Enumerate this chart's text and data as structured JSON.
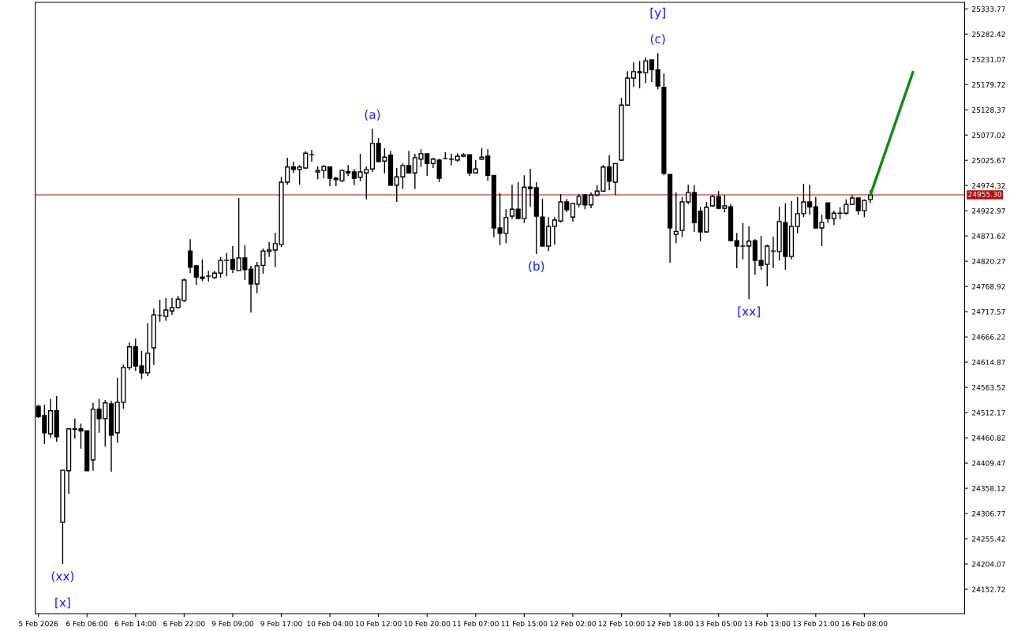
{
  "chart_data": {
    "type": "candlestick",
    "color": "#000000",
    "categories": [
      "5 Feb 2026",
      null,
      null,
      null,
      null,
      null,
      null,
      null,
      "6 Feb 06:00",
      null,
      null,
      null,
      null,
      null,
      null,
      null,
      "6 Feb 14:00",
      null,
      null,
      null,
      null,
      null,
      null,
      null,
      "6 Feb 22:00",
      null,
      null,
      null,
      null,
      null,
      null,
      null,
      "9 Feb 09:00",
      null,
      null,
      null,
      null,
      null,
      null,
      null,
      "9 Feb 17:00",
      null,
      null,
      null,
      null,
      null,
      null,
      null,
      "10 Feb 04:00",
      null,
      null,
      null,
      null,
      null,
      null,
      null,
      "10 Feb 12:00",
      null,
      null,
      null,
      null,
      null,
      null,
      null,
      "10 Feb 20:00",
      null,
      null,
      null,
      null,
      null,
      null,
      null,
      "11 Feb 07:00",
      null,
      null,
      null,
      null,
      null,
      null,
      null,
      "11 Feb 15:00",
      null,
      null,
      null,
      null,
      null,
      null,
      null,
      "12 Feb 02:00",
      null,
      null,
      null,
      null,
      null,
      null,
      null,
      "12 Feb 10:00",
      null,
      null,
      null,
      null,
      null,
      null,
      null,
      "12 Feb 18:00",
      null,
      null,
      null,
      null,
      null,
      null,
      null,
      "13 Feb 05:00",
      null,
      null,
      null,
      null,
      null,
      null,
      null,
      "13 Feb 13:00",
      null,
      null,
      null,
      null,
      null,
      null,
      null,
      "13 Feb 21:00",
      null,
      null,
      null,
      null,
      null,
      null,
      null,
      "16 Feb 08:00",
      null,
      null,
      null,
      null,
      null,
      null,
      null,
      null,
      null,
      null,
      null,
      null,
      null,
      null,
      null,
      null
    ],
    "ohlc": [
      [
        24525,
        24528,
        24501,
        24504
      ],
      [
        24506,
        24528,
        24448,
        24471
      ],
      [
        24469,
        24540,
        24461,
        24516
      ],
      [
        24516,
        24546,
        24453,
        24463
      ],
      [
        24289,
        24395,
        24204,
        24395
      ],
      [
        24394,
        24479,
        24347,
        24479
      ],
      [
        24478,
        24500,
        24459,
        24479
      ],
      [
        24479,
        24490,
        24439,
        24475
      ],
      [
        24475,
        24475,
        24394,
        24394
      ],
      [
        24416,
        24532,
        24394,
        24519
      ],
      [
        24519,
        24540,
        24471,
        24500
      ],
      [
        24500,
        24538,
        24443,
        24532
      ],
      [
        24530,
        24536,
        24392,
        24466
      ],
      [
        24471,
        24583,
        24451,
        24533
      ],
      [
        24533,
        24610,
        24520,
        24604
      ],
      [
        24604,
        24655,
        24599,
        24646
      ],
      [
        24646,
        24663,
        24597,
        24607
      ],
      [
        24607,
        24638,
        24580,
        24593
      ],
      [
        24593,
        24694,
        24586,
        24633
      ],
      [
        24644,
        24724,
        24609,
        24711
      ],
      [
        24710,
        24742,
        24697,
        24710
      ],
      [
        24708,
        24745,
        24699,
        24721
      ],
      [
        24719,
        24745,
        24711,
        24726
      ],
      [
        24726,
        24750,
        24724,
        24743
      ],
      [
        24740,
        24785,
        24737,
        24782
      ],
      [
        24841,
        24865,
        24796,
        24808
      ],
      [
        24811,
        24812,
        24772,
        24788
      ],
      [
        24788,
        24824,
        24780,
        24785
      ],
      [
        24790,
        24801,
        24779,
        24790
      ],
      [
        24787,
        24801,
        24784,
        24796
      ],
      [
        24796,
        24829,
        24787,
        24822
      ],
      [
        24822,
        24837,
        24790,
        24822
      ],
      [
        24824,
        24851,
        24796,
        24804
      ],
      [
        24801,
        24949,
        24800,
        24827
      ],
      [
        24827,
        24853,
        24782,
        24803
      ],
      [
        24804,
        24811,
        24716,
        24774
      ],
      [
        24774,
        24819,
        24755,
        24811
      ],
      [
        24812,
        24846,
        24795,
        24841
      ],
      [
        24840,
        24859,
        24829,
        24843
      ],
      [
        24843,
        24878,
        24808,
        24856
      ],
      [
        24854,
        24992,
        24849,
        24981
      ],
      [
        24981,
        25031,
        24976,
        25012
      ],
      [
        25012,
        25023,
        25000,
        25007
      ],
      [
        25007,
        25016,
        24976,
        25012
      ],
      [
        25010,
        25044,
        25008,
        25040
      ],
      [
        25037,
        25047,
        25023,
        25037
      ],
      [
        25002,
        25013,
        24987,
        25005
      ],
      [
        25005,
        25016,
        24989,
        25013
      ],
      [
        25012,
        25012,
        24973,
        24989
      ],
      [
        24989,
        24992,
        24973,
        24986
      ],
      [
        24984,
        25007,
        24981,
        25005
      ],
      [
        25003,
        25016,
        24994,
        25000
      ],
      [
        25002,
        25008,
        24975,
        24989
      ],
      [
        24991,
        25039,
        24983,
        25002
      ],
      [
        25000,
        25013,
        24946,
        25007
      ],
      [
        25008,
        25090,
        25002,
        25060
      ],
      [
        25060,
        25071,
        25021,
        25023
      ],
      [
        25024,
        25050,
        24999,
        25032
      ],
      [
        25036,
        25045,
        24973,
        24975
      ],
      [
        24975,
        25010,
        24941,
        24992
      ],
      [
        24992,
        25019,
        24967,
        25015
      ],
      [
        25015,
        25045,
        24999,
        25000
      ],
      [
        25000,
        25039,
        24967,
        25031
      ],
      [
        25028,
        25048,
        25012,
        25039
      ],
      [
        25039,
        25039,
        24994,
        25019
      ],
      [
        25019,
        25031,
        25010,
        25028
      ],
      [
        25026,
        25029,
        24981,
        24989
      ],
      [
        25029,
        25042,
        25028,
        25029
      ],
      [
        25028,
        25039,
        25015,
        25028
      ],
      [
        25026,
        25040,
        25023,
        25034
      ],
      [
        25034,
        25040,
        25032,
        25037
      ],
      [
        25037,
        25037,
        24994,
        25000
      ],
      [
        25000,
        25026,
        24999,
        25008
      ],
      [
        25028,
        25050,
        25026,
        25032
      ],
      [
        25034,
        25048,
        24984,
        24995
      ],
      [
        24995,
        24995,
        24869,
        24888
      ],
      [
        24888,
        24959,
        24853,
        24877
      ],
      [
        24877,
        24926,
        24857,
        24909
      ],
      [
        24912,
        24976,
        24906,
        24926
      ],
      [
        24926,
        24981,
        24907,
        24907
      ],
      [
        24907,
        24995,
        24898,
        24971
      ],
      [
        24971,
        25008,
        24931,
        24968
      ],
      [
        24970,
        24981,
        24835,
        24912
      ],
      [
        24910,
        24947,
        24851,
        24851
      ],
      [
        24851,
        24910,
        24841,
        24891
      ],
      [
        24891,
        24910,
        24854,
        24904
      ],
      [
        24902,
        24957,
        24899,
        24941
      ],
      [
        24941,
        24947,
        24920,
        24925
      ],
      [
        24910,
        24939,
        24901,
        24938
      ],
      [
        24936,
        24957,
        24930,
        24952
      ],
      [
        24955,
        24957,
        24926,
        24935
      ],
      [
        24935,
        24960,
        24928,
        24955
      ],
      [
        24955,
        24975,
        24952,
        24963
      ],
      [
        24963,
        25016,
        24962,
        25012
      ],
      [
        25012,
        25036,
        24965,
        24983
      ],
      [
        24981,
        25019,
        24955,
        25019
      ],
      [
        25026,
        25153,
        25024,
        25138
      ],
      [
        25138,
        25207,
        25137,
        25193
      ],
      [
        25193,
        25225,
        25175,
        25206
      ],
      [
        25206,
        25228,
        25172,
        25204
      ],
      [
        25204,
        25235,
        25183,
        25228
      ],
      [
        25230,
        25230,
        25185,
        25210
      ],
      [
        25210,
        25244,
        25170,
        25177
      ],
      [
        25174,
        25202,
        24995,
        24999
      ],
      [
        24997,
        24997,
        24817,
        24888
      ],
      [
        24875,
        24960,
        24857,
        24881
      ],
      [
        24883,
        24951,
        24869,
        24941
      ],
      [
        24941,
        24976,
        24936,
        24960
      ],
      [
        24960,
        24975,
        24880,
        24899
      ],
      [
        24922,
        24931,
        24861,
        24880
      ],
      [
        24880,
        24941,
        24878,
        24930
      ],
      [
        24933,
        24955,
        24931,
        24952
      ],
      [
        24952,
        24963,
        24926,
        24928
      ],
      [
        24928,
        24955,
        24920,
        24933
      ],
      [
        24931,
        24936,
        24861,
        24862
      ],
      [
        24862,
        24878,
        24806,
        24851
      ],
      [
        24851,
        24898,
        24824,
        24851
      ],
      [
        24851,
        24891,
        24743,
        24861
      ],
      [
        24862,
        24865,
        24793,
        24822
      ],
      [
        24822,
        24872,
        24803,
        24812
      ],
      [
        24814,
        24854,
        24769,
        24851
      ],
      [
        24841,
        24870,
        24806,
        24841
      ],
      [
        24840,
        24931,
        24822,
        24901
      ],
      [
        24899,
        24938,
        24803,
        24830
      ],
      [
        24830,
        24943,
        24824,
        24891
      ],
      [
        24891,
        24951,
        24877,
        24917
      ],
      [
        24917,
        24978,
        24910,
        24941
      ],
      [
        24941,
        24976,
        24915,
        24931
      ],
      [
        24931,
        24951,
        24886,
        24888
      ],
      [
        24888,
        24915,
        24851,
        24899
      ],
      [
        24939,
        24939,
        24898,
        24907
      ],
      [
        24907,
        24923,
        24894,
        24918
      ],
      [
        24918,
        24930,
        24906,
        24918
      ],
      [
        24918,
        24946,
        24915,
        24936
      ],
      [
        24936,
        24955,
        24935,
        24949
      ],
      [
        24949,
        24949,
        24915,
        24923
      ],
      [
        24923,
        24946,
        24910,
        24944
      ],
      [
        24946,
        24965,
        24939,
        24955
      ],
      null,
      null,
      null,
      null,
      null,
      null,
      null,
      null,
      null,
      null,
      null,
      null,
      null,
      null,
      null
    ],
    "series": [
      {
        "type": "line",
        "color": "#138a13",
        "values": [
          null,
          null,
          null,
          null,
          null,
          null,
          null,
          null,
          null,
          null,
          null,
          null,
          null,
          null,
          null,
          null,
          null,
          null,
          null,
          null,
          null,
          null,
          null,
          null,
          null,
          null,
          null,
          null,
          null,
          null,
          null,
          null,
          null,
          null,
          null,
          null,
          null,
          null,
          null,
          null,
          null,
          null,
          null,
          null,
          null,
          null,
          null,
          null,
          null,
          null,
          null,
          null,
          null,
          null,
          null,
          null,
          null,
          null,
          null,
          null,
          null,
          null,
          null,
          null,
          null,
          null,
          null,
          null,
          null,
          null,
          null,
          null,
          null,
          null,
          null,
          null,
          null,
          null,
          null,
          null,
          null,
          null,
          null,
          null,
          null,
          null,
          null,
          null,
          null,
          null,
          null,
          null,
          null,
          null,
          null,
          null,
          null,
          null,
          null,
          null,
          null,
          null,
          null,
          null,
          null,
          null,
          null,
          null,
          null,
          null,
          null,
          null,
          null,
          null,
          null,
          null,
          null,
          null,
          null,
          null,
          null,
          null,
          null,
          null,
          null,
          null,
          null,
          null,
          null,
          null,
          null,
          null,
          null,
          null,
          null,
          null,
          null,
          24955,
          null,
          null,
          null,
          null,
          null,
          null,
          25205,
          null,
          null,
          null,
          null,
          null,
          null,
          null,
          null
        ]
      }
    ],
    "ylim": [
      24103,
      25347
    ],
    "yticks": [
      24152.72,
      24204.07,
      24255.42,
      24306.77,
      24358.12,
      24409.47,
      24460.82,
      24512.17,
      24563.52,
      24614.87,
      24666.22,
      24717.57,
      24768.92,
      24820.27,
      24871.62,
      24922.97,
      24974.32,
      25025.67,
      25077.02,
      25128.37,
      25179.72,
      25231.07,
      25282.42,
      25333.77
    ],
    "ref_lines": [
      {
        "axis": "y",
        "value": 24955.3,
        "label": "24955.30",
        "color": "#b01010"
      }
    ],
    "annotations": [
      {
        "text": "(a)",
        "y": 25090
      },
      {
        "text": "(b)",
        "y": 24835
      },
      {
        "text": "(c)",
        "y": 25244
      },
      {
        "text": "[y]",
        "y": 25244
      },
      {
        "text": "[xx]",
        "y": 24743
      },
      {
        "text": "(xx)",
        "y": 24204
      },
      {
        "text": "[x]",
        "y": 24204
      }
    ],
    "grid": false,
    "legend": false
  }
}
